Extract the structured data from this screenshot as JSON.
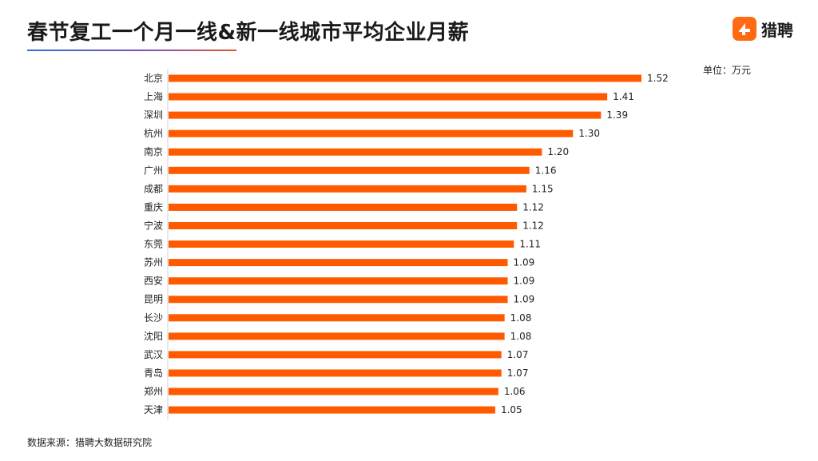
{
  "header": {
    "title": "春节复工一个月一线&新一线城市平均企业月薪",
    "logo_text": "猎聘",
    "logo_icon": "liepin-logo-icon"
  },
  "unit_label": "单位：万元",
  "source_label": "数据来源：猎聘大数据研究院",
  "colors": {
    "bar": "#FF5A00",
    "axis": "#d0d0d0",
    "logo": "#FF6A13"
  },
  "chart_data": {
    "type": "bar",
    "orientation": "horizontal",
    "title": "春节复工一个月一线&新一线城市平均企业月薪",
    "xlabel": "",
    "ylabel": "",
    "unit": "单位：万元",
    "xlim": [
      0,
      1.52
    ],
    "grid": false,
    "categories": [
      "北京",
      "上海",
      "深圳",
      "杭州",
      "南京",
      "广州",
      "成都",
      "重庆",
      "宁波",
      "东莞",
      "苏州",
      "西安",
      "昆明",
      "长沙",
      "沈阳",
      "武汉",
      "青岛",
      "郑州",
      "天津"
    ],
    "values": [
      1.52,
      1.41,
      1.39,
      1.3,
      1.2,
      1.16,
      1.15,
      1.12,
      1.12,
      1.11,
      1.09,
      1.09,
      1.09,
      1.08,
      1.08,
      1.07,
      1.07,
      1.06,
      1.05
    ],
    "value_labels": [
      "1.52",
      "1.41",
      "1.39",
      "1.30",
      "1.20",
      "1.16",
      "1.15",
      "1.12",
      "1.12",
      "1.11",
      "1.09",
      "1.09",
      "1.09",
      "1.08",
      "1.08",
      "1.07",
      "1.07",
      "1.06",
      "1.05"
    ]
  }
}
